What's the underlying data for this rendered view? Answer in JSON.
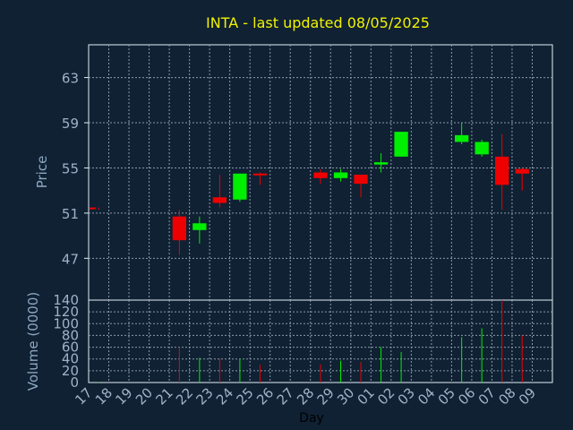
{
  "chart_data": [
    {
      "type": "candlestick",
      "title": "INTA - last updated 08/05/2025",
      "ylabel": "Price",
      "xlabel": "Day",
      "ylim": [
        43.3,
        65.9
      ],
      "yticks": [
        47,
        51,
        55,
        59,
        63
      ],
      "grid": true,
      "categories": [
        "17",
        "18",
        "19",
        "20",
        "21",
        "22",
        "23",
        "24",
        "25",
        "26",
        "27",
        "28",
        "29",
        "30",
        "01",
        "02",
        "03",
        "04",
        "05",
        "06",
        "07",
        "08",
        "09"
      ],
      "candles": [
        {
          "day": "17",
          "open": 51.5,
          "close": 51.4,
          "high": 51.5,
          "low": 51.3
        },
        {
          "day": "21",
          "open": 50.7,
          "close": 48.6,
          "high": 51.3,
          "low": 47.3
        },
        {
          "day": "22",
          "open": 49.5,
          "close": 50.1,
          "high": 50.7,
          "low": 48.3
        },
        {
          "day": "23",
          "open": 52.4,
          "close": 51.9,
          "high": 54.4,
          "low": 51.5
        },
        {
          "day": "24",
          "open": 52.2,
          "close": 54.5,
          "high": 54.5,
          "low": 52.0
        },
        {
          "day": "25",
          "open": 54.5,
          "close": 54.4,
          "high": 54.6,
          "low": 53.5
        },
        {
          "day": "28",
          "open": 54.6,
          "close": 54.1,
          "high": 54.9,
          "low": 53.6
        },
        {
          "day": "29",
          "open": 54.1,
          "close": 54.6,
          "high": 54.9,
          "low": 53.8
        },
        {
          "day": "30",
          "open": 54.4,
          "close": 53.6,
          "high": 54.4,
          "low": 52.4
        },
        {
          "day": "01",
          "open": 55.3,
          "close": 55.5,
          "high": 56.3,
          "low": 54.6
        },
        {
          "day": "02",
          "open": 56.0,
          "close": 58.2,
          "high": 58.2,
          "low": 56.0
        },
        {
          "day": "05",
          "open": 57.3,
          "close": 57.9,
          "high": 59.0,
          "low": 57.1
        },
        {
          "day": "06",
          "open": 56.2,
          "close": 57.3,
          "high": 57.5,
          "low": 56.0
        },
        {
          "day": "07",
          "open": 56.0,
          "close": 53.5,
          "high": 58.0,
          "low": 51.3
        },
        {
          "day": "08",
          "open": 54.9,
          "close": 54.5,
          "high": 55.0,
          "low": 53.0
        }
      ]
    },
    {
      "type": "bar",
      "ylabel": "Volume (0000)",
      "xlabel": "Day",
      "ylim": [
        0,
        140
      ],
      "yticks": [
        0,
        20,
        40,
        60,
        80,
        100,
        120,
        140
      ],
      "grid": true,
      "categories": [
        "17",
        "18",
        "19",
        "20",
        "21",
        "22",
        "23",
        "24",
        "25",
        "26",
        "27",
        "28",
        "29",
        "30",
        "01",
        "02",
        "03",
        "04",
        "05",
        "06",
        "07",
        "08",
        "09"
      ],
      "bars": [
        {
          "day": "17",
          "value": 1,
          "direction": "up"
        },
        {
          "day": "21",
          "value": 60,
          "direction": "down"
        },
        {
          "day": "22",
          "value": 42,
          "direction": "up"
        },
        {
          "day": "23",
          "value": 41,
          "direction": "down"
        },
        {
          "day": "24",
          "value": 40,
          "direction": "up"
        },
        {
          "day": "25",
          "value": 30,
          "direction": "down"
        },
        {
          "day": "28",
          "value": 31,
          "direction": "down"
        },
        {
          "day": "29",
          "value": 37,
          "direction": "up"
        },
        {
          "day": "30",
          "value": 35,
          "direction": "down"
        },
        {
          "day": "01",
          "value": 60,
          "direction": "up"
        },
        {
          "day": "02",
          "value": 52,
          "direction": "up"
        },
        {
          "day": "05",
          "value": 77,
          "direction": "up"
        },
        {
          "day": "06",
          "value": 92,
          "direction": "up"
        },
        {
          "day": "07",
          "value": 140,
          "direction": "down"
        },
        {
          "day": "08",
          "value": 80,
          "direction": "down"
        }
      ]
    }
  ],
  "colors": {
    "background": "#0f2133",
    "plot_border": "#e6eef5",
    "grid": "#8a9aab",
    "up": "#00ee00",
    "down": "#ee0000",
    "title": "#f2f200",
    "tick_label": "#9fb3c8"
  }
}
